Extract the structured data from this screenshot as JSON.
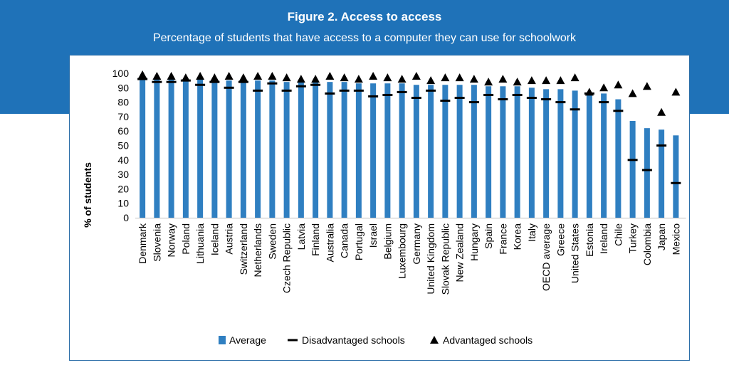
{
  "header": {
    "title": "Figure 2. Access to access",
    "subtitle": "Percentage of students that have access to a computer they can use for schoolwork"
  },
  "colors": {
    "header_bg": "#1f72b8",
    "bar": "#2f7fc1",
    "marker": "#000000",
    "panel_border": "#2b6ea8"
  },
  "chart_data": {
    "type": "bar",
    "ylabel": "% of students",
    "ylim": [
      0,
      100
    ],
    "yticks": [
      0,
      10,
      20,
      30,
      40,
      50,
      60,
      70,
      80,
      90,
      100
    ],
    "grid": false,
    "legend_position": "bottom",
    "categories": [
      "Denmark",
      "Slovenia",
      "Norway",
      "Poland",
      "Lithuania",
      "Iceland",
      "Austria",
      "Switzerland",
      "Netherlands",
      "Sweden",
      "Czech Republic",
      "Latvia",
      "Finland",
      "Australia",
      "Canada",
      "Portugal",
      "Israel",
      "Belgium",
      "Luxembourg",
      "Germany",
      "United Kingdom",
      "Slovak Republic",
      "New Zealand",
      "Hungary",
      "Spain",
      "France",
      "Korea",
      "Italy",
      "OECD average",
      "Greece",
      "United States",
      "Estonia",
      "Ireland",
      "Chile",
      "Turkey",
      "Colombia",
      "Japan",
      "Mexico"
    ],
    "series": [
      {
        "name": "Average",
        "kind": "bar",
        "values": [
          98,
          96,
          96,
          96,
          96,
          96,
          95,
          95,
          95,
          95,
          94,
          94,
          94,
          94,
          94,
          93,
          93,
          93,
          93,
          92,
          92,
          92,
          92,
          92,
          91,
          91,
          91,
          90,
          89,
          89,
          88,
          86,
          86,
          82,
          67,
          62,
          61,
          57
        ]
      },
      {
        "name": "Disadvantaged schools",
        "kind": "dash",
        "values": [
          96,
          94,
          94,
          95,
          92,
          94,
          90,
          94,
          88,
          93,
          88,
          91,
          92,
          86,
          88,
          88,
          84,
          85,
          87,
          83,
          88,
          81,
          83,
          80,
          85,
          82,
          85,
          83,
          82,
          80,
          75,
          86,
          80,
          74,
          40,
          33,
          50,
          24
        ]
      },
      {
        "name": "Advantaged schools",
        "kind": "triangle",
        "values": [
          99,
          98,
          98,
          97,
          98,
          97,
          98,
          97,
          98,
          98,
          97,
          96,
          96,
          98,
          97,
          96,
          98,
          97,
          96,
          98,
          95,
          97,
          97,
          96,
          94,
          96,
          94,
          95,
          95,
          95,
          97,
          87,
          90,
          92,
          86,
          91,
          73,
          87
        ]
      }
    ]
  }
}
